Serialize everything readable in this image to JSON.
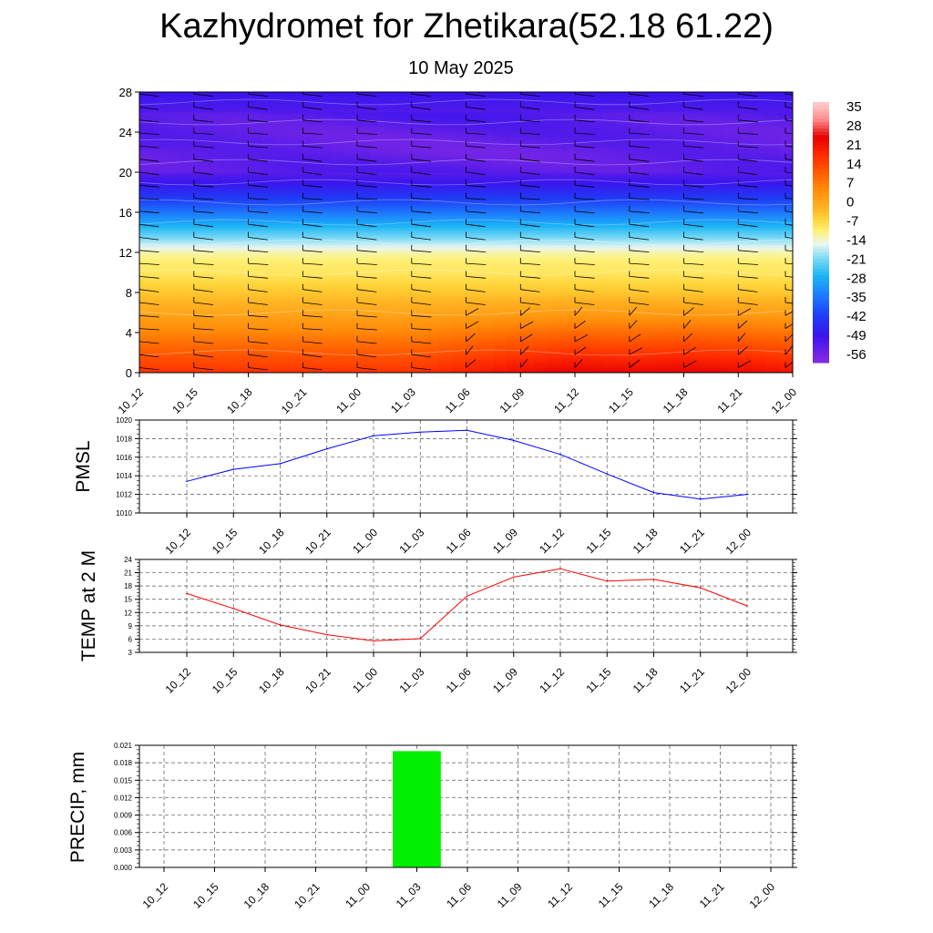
{
  "header": {
    "title": "Kazhydromet for Zhetikara(52.18 61.22)",
    "subtitle": "10 May 2025"
  },
  "chart_data": [
    {
      "type": "heatmap",
      "name": "cross-section",
      "xlabel": "",
      "ylabel": "",
      "categories": [
        "10_12",
        "10_15",
        "10_18",
        "10_21",
        "11_00",
        "11_03",
        "11_06",
        "11_09",
        "11_12",
        "11_15",
        "11_18",
        "11_21",
        "12_00"
      ],
      "ylim": [
        0,
        28
      ],
      "y_ticks": [
        0,
        4,
        8,
        12,
        16,
        20,
        24,
        28
      ],
      "y_levels": [
        0,
        2,
        4,
        6,
        8,
        10,
        11,
        12,
        13,
        14,
        15,
        16,
        17,
        18,
        19,
        20,
        22,
        24,
        26,
        28
      ],
      "colorbar": {
        "labels": [
          "35",
          "28",
          "21",
          "14",
          "7",
          "0",
          "-7",
          "-14",
          "-21",
          "-28",
          "-35",
          "-42",
          "-49",
          "-56"
        ],
        "range": [
          -63,
          42
        ],
        "stops": [
          {
            "v": -63,
            "c": "#8a2be2"
          },
          {
            "v": -52,
            "c": "#3b14ee"
          },
          {
            "v": -44,
            "c": "#1f3df5"
          },
          {
            "v": -36,
            "c": "#1e78ff"
          },
          {
            "v": -28,
            "c": "#1ab4f5"
          },
          {
            "v": -21,
            "c": "#7ad9f5"
          },
          {
            "v": -15,
            "c": "#eaf6f0"
          },
          {
            "v": -10,
            "c": "#fff27a"
          },
          {
            "v": -5,
            "c": "#ffd43a"
          },
          {
            "v": 0,
            "c": "#ffb020"
          },
          {
            "v": 7,
            "c": "#ff8c0a"
          },
          {
            "v": 14,
            "c": "#ff5a00"
          },
          {
            "v": 21,
            "c": "#ff2a00"
          },
          {
            "v": 28,
            "c": "#e60000"
          },
          {
            "v": 35,
            "c": "#ff8a8a"
          },
          {
            "v": 42,
            "c": "#ffd0d0"
          }
        ]
      },
      "profile_levels": [
        0,
        2,
        4,
        6,
        8,
        10,
        11,
        12,
        13,
        14,
        15,
        16,
        17,
        18,
        19,
        20,
        22,
        24,
        26,
        28
      ],
      "profile_values": [
        20,
        14,
        8,
        2,
        -3,
        -8,
        -9,
        -12,
        -18,
        -24,
        -30,
        -36,
        -42,
        -47,
        -52,
        -56,
        -58,
        -57,
        -55,
        -52
      ],
      "surface_warming": [
        0,
        0,
        0,
        0,
        0,
        0,
        3,
        6,
        8,
        7,
        8,
        7,
        5
      ]
    },
    {
      "type": "line",
      "name": "pmsl",
      "ylabel": "PMSL",
      "categories": [
        "10_12",
        "10_15",
        "10_18",
        "10_21",
        "11_00",
        "11_03",
        "11_06",
        "11_09",
        "11_12",
        "11_15",
        "11_18",
        "11_21",
        "12_00"
      ],
      "ylim": [
        1010,
        1020
      ],
      "y_ticks": [
        1010,
        1012,
        1014,
        1016,
        1018,
        1020
      ],
      "series": [
        {
          "color": "#0000ff",
          "values": [
            1013.4,
            1014.7,
            1015.3,
            1016.9,
            1018.3,
            1018.7,
            1018.9,
            1017.8,
            1016.3,
            1014.2,
            1012.2,
            1011.5,
            1012.0
          ]
        }
      ]
    },
    {
      "type": "line",
      "name": "temp",
      "ylabel": "TEMP at 2 M",
      "categories": [
        "10_12",
        "10_15",
        "10_18",
        "10_21",
        "11_00",
        "11_03",
        "11_06",
        "11_09",
        "11_12",
        "11_15",
        "11_18",
        "11_21",
        "12_00"
      ],
      "ylim": [
        3,
        24
      ],
      "y_ticks": [
        3,
        6,
        9,
        12,
        15,
        18,
        21,
        24
      ],
      "series": [
        {
          "color": "#ff0000",
          "values": [
            16.3,
            12.9,
            9.2,
            7.0,
            5.6,
            6.1,
            15.7,
            20.0,
            21.9,
            19.1,
            19.5,
            17.6,
            13.5
          ]
        }
      ]
    },
    {
      "type": "bar",
      "name": "precip",
      "ylabel": "PRECIP, mm",
      "categories": [
        "10_12",
        "10_15",
        "10_18",
        "10_21",
        "11_00",
        "11_03",
        "11_06",
        "11_09",
        "11_12",
        "11_15",
        "11_18",
        "11_21",
        "12_00"
      ],
      "ylim": [
        0,
        0.021
      ],
      "y_ticks": [
        "0.000",
        "0.003",
        "0.006",
        "0.009",
        "0.012",
        "0.015",
        "0.018",
        "0.021"
      ],
      "bar_color": "#00ee00",
      "values": [
        0,
        0,
        0,
        0,
        0,
        0.02,
        0,
        0,
        0,
        0,
        0,
        0,
        0
      ]
    }
  ]
}
